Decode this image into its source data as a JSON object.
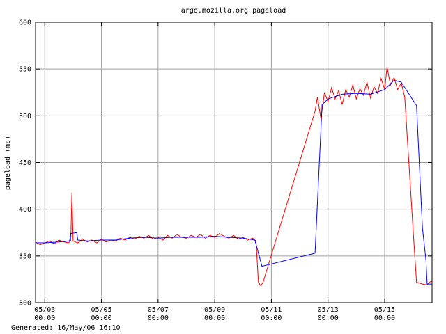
{
  "chart_data": {
    "type": "line",
    "title": "argo.mozilla.org pageload",
    "ylabel": "pageload (ms)",
    "footer": "Generated: 16/May/06 16:10",
    "xlim": [
      "05/02 16:10",
      "05/16 16:10"
    ],
    "xticks": [
      {
        "value": "05/03 00:00",
        "label": "05/03\n00:00"
      },
      {
        "value": "05/05 00:00",
        "label": "05/05\n00:00"
      },
      {
        "value": "05/07 00:00",
        "label": "05/07\n00:00"
      },
      {
        "value": "05/09 00:00",
        "label": "05/09\n00:00"
      },
      {
        "value": "05/11 00:00",
        "label": "05/11\n00:00"
      },
      {
        "value": "05/13 00:00",
        "label": "05/13\n00:00"
      },
      {
        "value": "05/15 00:00",
        "label": "05/15\n00:00"
      }
    ],
    "ylim": [
      300,
      600
    ],
    "yticks": [
      300,
      350,
      400,
      450,
      500,
      550,
      600
    ],
    "grid": true,
    "series": [
      {
        "color": "#ff0000",
        "x": [
          "05/02 16:10",
          "05/02 20:00",
          "05/03 00:00",
          "05/03 04:00",
          "05/03 08:00",
          "05/03 12:00",
          "05/03 16:00",
          "05/03 20:00",
          "05/03 22:00",
          "05/03 23:00",
          "05/04 00:00",
          "05/04 04:00",
          "05/04 08:00",
          "05/04 12:00",
          "05/04 16:00",
          "05/04 20:00",
          "05/05 00:00",
          "05/05 04:00",
          "05/05 08:00",
          "05/05 12:00",
          "05/05 16:00",
          "05/05 20:00",
          "05/06 00:00",
          "05/06 04:00",
          "05/06 08:00",
          "05/06 12:00",
          "05/06 16:00",
          "05/06 20:00",
          "05/07 00:00",
          "05/07 04:00",
          "05/07 08:00",
          "05/07 12:00",
          "05/07 16:00",
          "05/07 20:00",
          "05/08 00:00",
          "05/08 04:00",
          "05/08 08:00",
          "05/08 12:00",
          "05/08 16:00",
          "05/08 20:00",
          "05/09 00:00",
          "05/09 04:00",
          "05/09 08:00",
          "05/09 12:00",
          "05/09 16:00",
          "05/09 20:00",
          "05/10 00:00",
          "05/10 04:00",
          "05/10 08:00",
          "05/10 11:00",
          "05/10 13:00",
          "05/10 15:00",
          "05/10 17:00",
          "05/12 13:00",
          "05/12 15:00",
          "05/12 18:00",
          "05/12 21:00",
          "05/13 00:00",
          "05/13 03:00",
          "05/13 06:00",
          "05/13 09:00",
          "05/13 12:00",
          "05/13 15:00",
          "05/13 18:00",
          "05/13 21:00",
          "05/14 00:00",
          "05/14 03:00",
          "05/14 06:00",
          "05/14 09:00",
          "05/14 12:00",
          "05/14 15:00",
          "05/14 18:00",
          "05/14 21:00",
          "05/15 00:00",
          "05/15 02:00",
          "05/15 05:00",
          "05/15 08:00",
          "05/15 11:00",
          "05/15 14:00",
          "05/15 17:00",
          "05/16 00:00",
          "05/16 03:00",
          "05/16 08:00",
          "05/16 12:00",
          "05/16 14:00",
          "05/16 16:10"
        ],
        "values": [
          365,
          362,
          364,
          366,
          363,
          367,
          365,
          364,
          366,
          418,
          366,
          364,
          368,
          365,
          367,
          364,
          368,
          365,
          367,
          366,
          369,
          367,
          370,
          368,
          371,
          369,
          372,
          368,
          370,
          367,
          372,
          369,
          373,
          370,
          369,
          372,
          370,
          373,
          369,
          372,
          370,
          374,
          371,
          369,
          372,
          368,
          370,
          367,
          369,
          366,
          322,
          318,
          322,
          505,
          520,
          497,
          525,
          515,
          530,
          518,
          527,
          512,
          528,
          520,
          533,
          518,
          529,
          522,
          536,
          519,
          531,
          524,
          540,
          528,
          552,
          533,
          541,
          528,
          535,
          520,
          380,
          322,
          320,
          319,
          322,
          323
        ]
      },
      {
        "color": "#0000ff",
        "x": [
          "05/02 16:10",
          "05/03 00:00",
          "05/03 12:00",
          "05/03 21:00",
          "05/03 22:00",
          "05/04 03:00",
          "05/04 04:00",
          "05/04 12:00",
          "05/05 00:00",
          "05/05 12:00",
          "05/06 00:00",
          "05/06 12:00",
          "05/07 00:00",
          "05/07 12:00",
          "05/08 00:00",
          "05/08 12:00",
          "05/09 00:00",
          "05/09 12:00",
          "05/10 00:00",
          "05/10 10:00",
          "05/10 16:00",
          "05/12 13:00",
          "05/12 19:00",
          "05/13 00:00",
          "05/13 12:00",
          "05/14 00:00",
          "05/14 12:00",
          "05/15 00:00",
          "05/15 08:00",
          "05/15 14:00",
          "05/16 03:00",
          "05/16 08:00",
          "05/16 11:00",
          "05/16 12:00",
          "05/16 16:10"
        ],
        "values": [
          364,
          364,
          365,
          366,
          374,
          375,
          367,
          366,
          367,
          367,
          369,
          370,
          369,
          370,
          370,
          370,
          371,
          370,
          369,
          367,
          339,
          353,
          512,
          518,
          523,
          524,
          523,
          528,
          538,
          536,
          511,
          380,
          345,
          320,
          320
        ]
      }
    ]
  }
}
